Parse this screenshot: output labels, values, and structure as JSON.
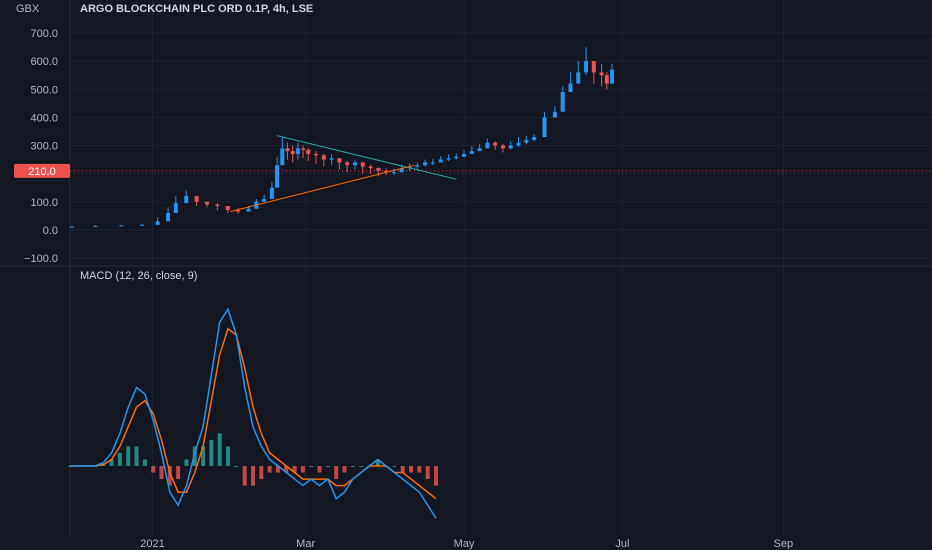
{
  "header": {
    "title": "ARGO BLOCKCHAIN PLC ORD 0.1P, 4h, LSE",
    "currency": "GBX"
  },
  "colors": {
    "background": "#131722",
    "grid": "#1f2433",
    "up": "#2196f3",
    "down": "#ef5350",
    "macd_line": "#2196f3",
    "signal_line": "#ff6d00",
    "hist_up": "#26a69a",
    "hist_down": "#ef5350",
    "trend_upper": "#26a69a",
    "trend_lower": "#ff6d00",
    "price_line": "#ef5350"
  },
  "price_label": "210.0",
  "chart_data": [
    {
      "type": "candlestick",
      "title": "ARGO BLOCKCHAIN PLC ORD 0.1P, 4h, LSE",
      "ylabel": "GBX",
      "ylim": [
        -100,
        700
      ],
      "yticks": [
        "700.0",
        "600.0",
        "500.0",
        "400.0",
        "300.0",
        "200.0",
        "100.0",
        "0.0",
        "−100.0"
      ],
      "x_tick_labels": [
        "2021",
        "Mar",
        "May",
        "Jul",
        "Sep"
      ],
      "last_price": 210.0,
      "series": [
        {
          "x": [
            "2020-12-01",
            "2020-12-10",
            "2020-12-20",
            "2020-12-28",
            "2021-01-03",
            "2021-01-07",
            "2021-01-10",
            "2021-01-14",
            "2021-01-18",
            "2021-01-22",
            "2021-01-26",
            "2021-01-30",
            "2021-02-03",
            "2021-02-07",
            "2021-02-10",
            "2021-02-13",
            "2021-02-16",
            "2021-02-18",
            "2021-02-20",
            "2021-02-22",
            "2021-02-24",
            "2021-02-26",
            "2021-02-28",
            "2021-03-02",
            "2021-03-05",
            "2021-03-08",
            "2021-03-11",
            "2021-03-14",
            "2021-03-17",
            "2021-03-20",
            "2021-03-23",
            "2021-03-26",
            "2021-03-29",
            "2021-04-01",
            "2021-04-04",
            "2021-04-07",
            "2021-04-10",
            "2021-04-13",
            "2021-04-16",
            "2021-04-19",
            "2021-04-22",
            "2021-04-25",
            "2021-04-28",
            "2021-05-01",
            "2021-05-04",
            "2021-05-07",
            "2021-05-10",
            "2021-05-13",
            "2021-05-16",
            "2021-05-19",
            "2021-05-22",
            "2021-05-25",
            "2021-05-28",
            "2021-06-01",
            "2021-06-05",
            "2021-06-08",
            "2021-06-11",
            "2021-06-14",
            "2021-06-17",
            "2021-06-20",
            "2021-06-23",
            "2021-06-25",
            "2021-06-27"
          ],
          "close": [
            12,
            14,
            16,
            18,
            30,
            60,
            95,
            120,
            100,
            90,
            85,
            70,
            65,
            75,
            100,
            110,
            150,
            230,
            290,
            280,
            270,
            290,
            285,
            270,
            265,
            250,
            255,
            240,
            230,
            240,
            225,
            220,
            210,
            205,
            205,
            220,
            225,
            230,
            240,
            240,
            250,
            255,
            260,
            270,
            280,
            290,
            310,
            300,
            290,
            300,
            310,
            320,
            330,
            400,
            420,
            490,
            520,
            560,
            600,
            560,
            550,
            520,
            570
          ],
          "high": [
            14,
            16,
            18,
            22,
            45,
            80,
            120,
            140,
            115,
            100,
            95,
            85,
            78,
            85,
            110,
            125,
            170,
            260,
            330,
            310,
            300,
            310,
            300,
            290,
            280,
            270,
            270,
            255,
            245,
            250,
            240,
            232,
            222,
            218,
            218,
            232,
            236,
            240,
            250,
            252,
            262,
            268,
            272,
            284,
            298,
            305,
            325,
            315,
            305,
            315,
            330,
            335,
            340,
            420,
            440,
            510,
            560,
            600,
            650,
            600,
            590,
            560,
            590
          ],
          "low": [
            10,
            12,
            14,
            16,
            25,
            55,
            85,
            95,
            85,
            80,
            70,
            60,
            58,
            65,
            90,
            100,
            140,
            200,
            240,
            250,
            240,
            250,
            255,
            245,
            235,
            225,
            230,
            215,
            205,
            215,
            200,
            200,
            190,
            195,
            195,
            205,
            210,
            215,
            225,
            230,
            240,
            245,
            250,
            260,
            270,
            280,
            295,
            285,
            275,
            285,
            295,
            305,
            315,
            370,
            400,
            460,
            500,
            530,
            550,
            520,
            510,
            500,
            520
          ]
        }
      ],
      "trendlines": [
        {
          "name": "upper",
          "x": [
            "2021-02-18",
            "2021-04-28"
          ],
          "y": [
            335,
            180
          ]
        },
        {
          "name": "lower",
          "x": [
            "2021-01-31",
            "2021-04-12"
          ],
          "y": [
            65,
            230
          ]
        }
      ]
    },
    {
      "type": "line",
      "title": "MACD (12, 26, close, 9)",
      "series": [
        {
          "name": "macd",
          "values": [
            0,
            0,
            0,
            0,
            0.5,
            2,
            5,
            9,
            12,
            11,
            7,
            2,
            -4,
            -6,
            -3,
            2,
            6,
            14,
            22,
            24,
            20,
            12,
            6,
            3,
            1,
            0,
            -1,
            -2,
            -3,
            -2,
            -3,
            -2,
            -5,
            -4,
            -2,
            -1,
            0,
            1,
            0,
            -1,
            -2,
            -3,
            -4,
            -6,
            -8
          ]
        },
        {
          "name": "signal",
          "values": [
            0,
            0,
            0,
            0,
            0.2,
            1,
            3,
            6,
            9,
            10,
            8,
            4,
            -1,
            -4,
            -4,
            -1,
            3,
            10,
            17,
            21,
            20,
            15,
            9,
            5,
            2,
            1,
            0,
            -1,
            -2,
            -2,
            -2,
            -2,
            -3,
            -3,
            -2,
            -1,
            0,
            0,
            0,
            -1,
            -1,
            -2,
            -3,
            -4,
            -5
          ]
        }
      ],
      "histogram": [
        0,
        0,
        0,
        0,
        0.3,
        1,
        2,
        3,
        3,
        1,
        -1,
        -2,
        -3,
        -2,
        1,
        3,
        3,
        4,
        5,
        3,
        0,
        -3,
        -3,
        -2,
        -1,
        -1,
        -1,
        -1,
        -1,
        0,
        -1,
        0,
        -2,
        -1,
        0,
        0,
        0,
        1,
        0,
        0,
        -1,
        -1,
        -1,
        -2,
        -3
      ]
    }
  ]
}
